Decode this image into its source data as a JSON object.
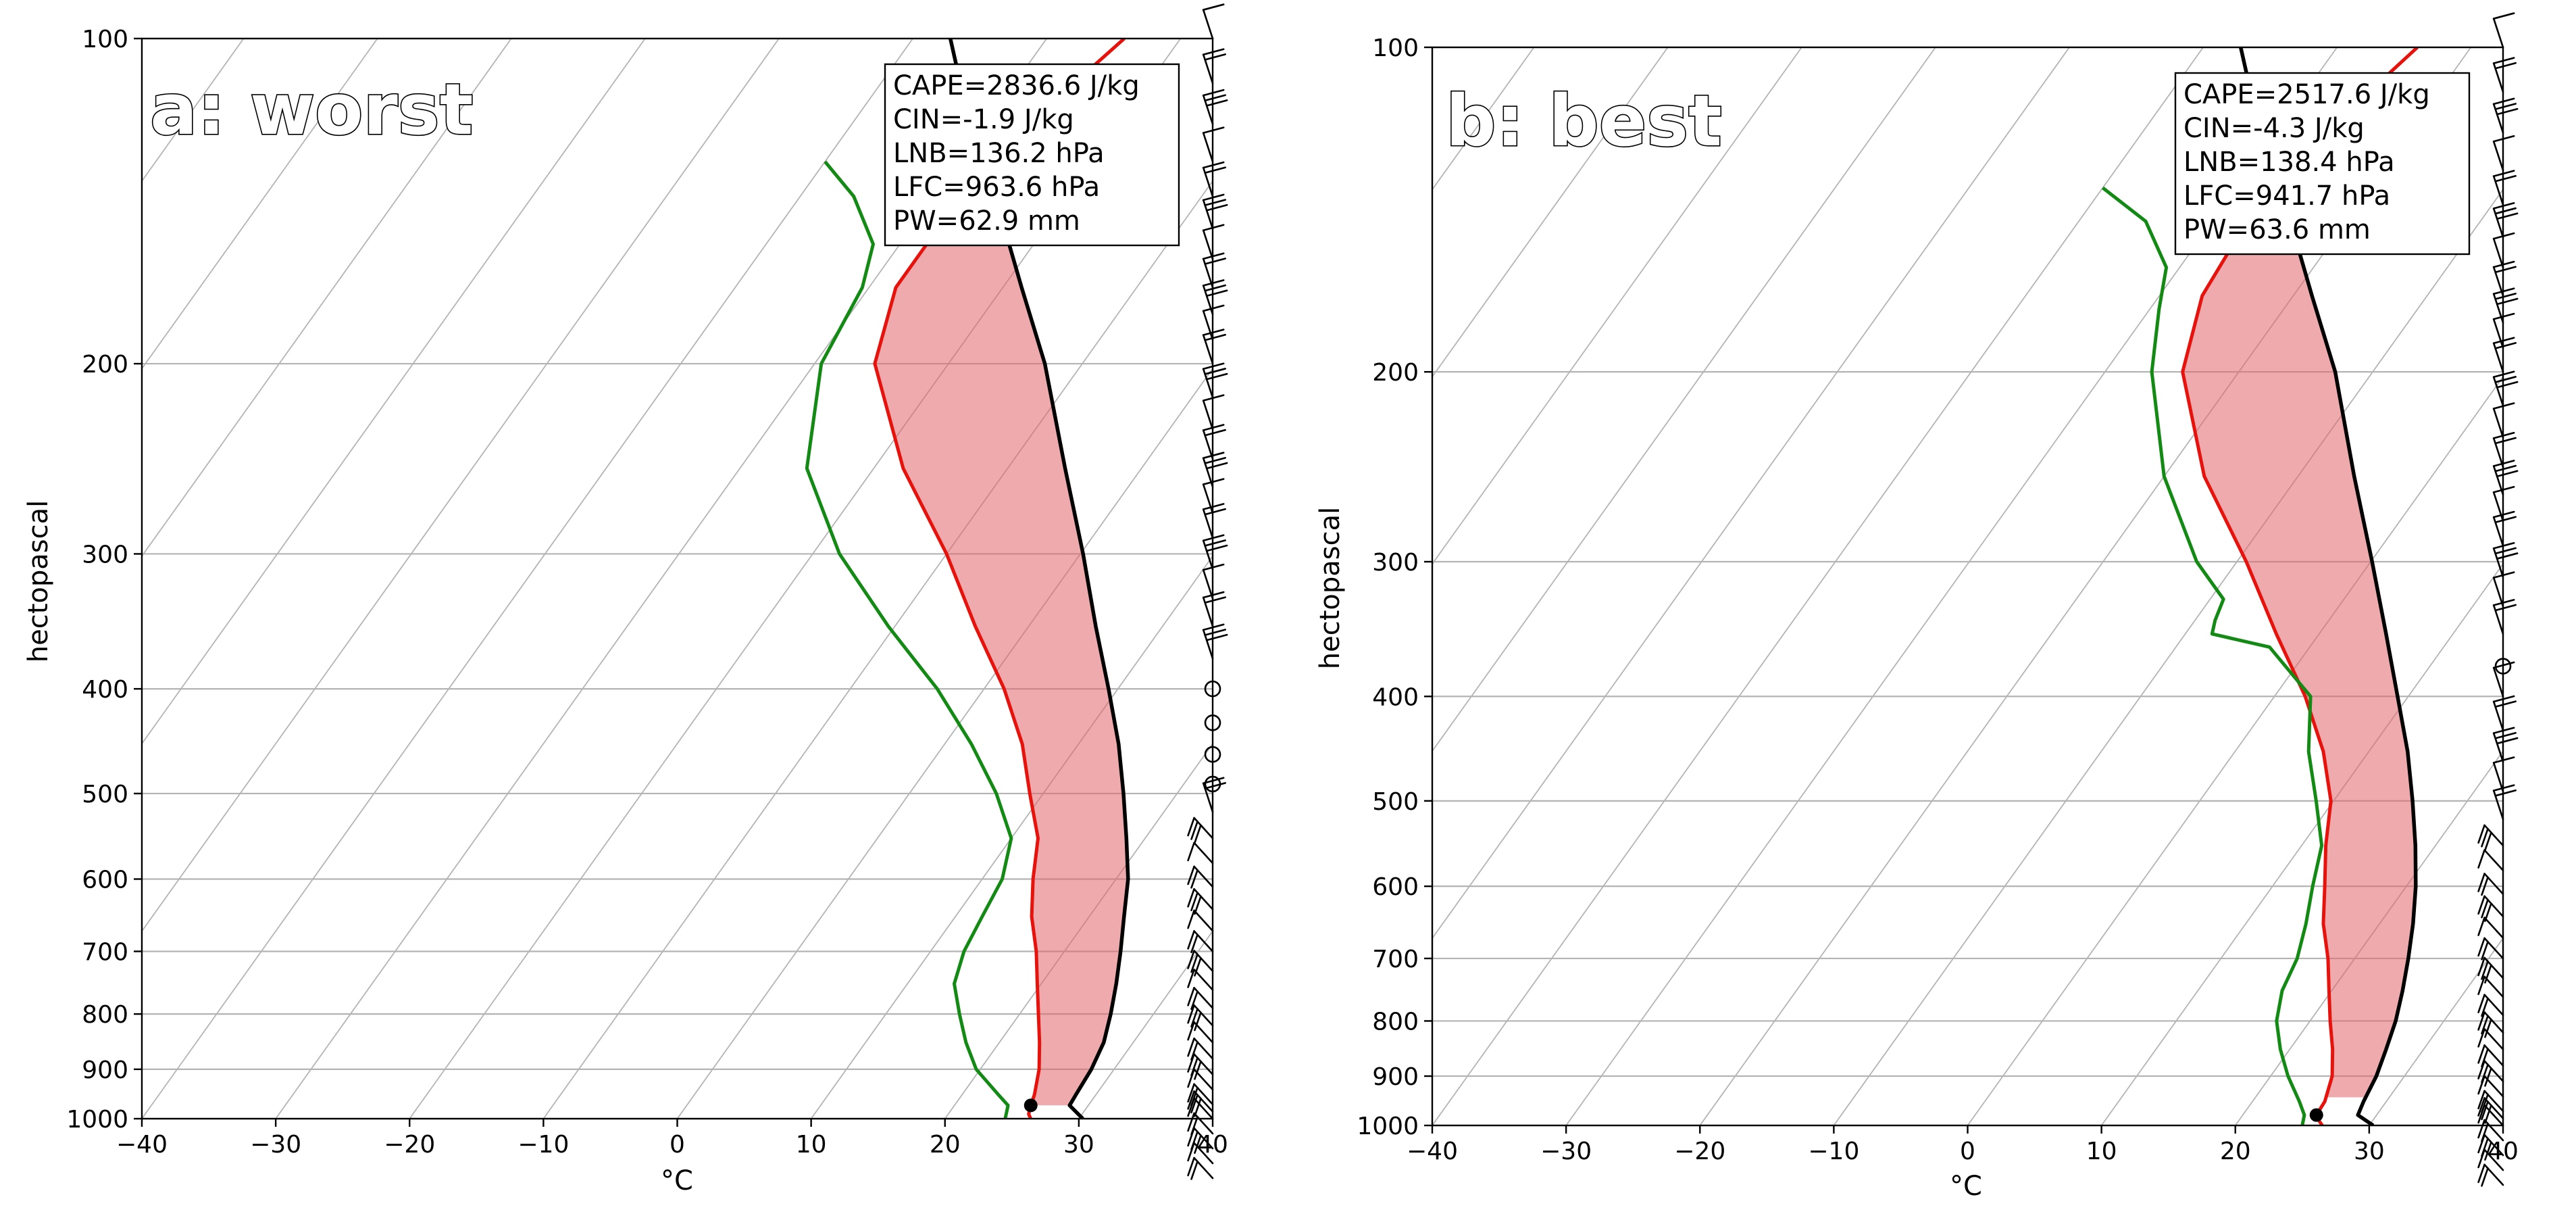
{
  "figure": {
    "panels": [
      {
        "title": "a: worst",
        "xlabel": "°C",
        "ylabel": "hectopascal",
        "stats": [
          "CAPE=2836.6 J/kg",
          "CIN=-1.9 J/kg",
          "LNB=136.2 hPa",
          "LFC=963.6 hPa",
          "PW=62.9 mm"
        ]
      },
      {
        "title": "b: best",
        "xlabel": "°C",
        "ylabel": "hectopascal",
        "stats": [
          "CAPE=2517.6 J/kg",
          "CIN=-4.3 J/kg",
          "LNB=138.4 hPa",
          "LFC=941.7 hPa",
          "PW=63.6 mm"
        ]
      }
    ]
  },
  "chart_data": [
    {
      "type": "skew-t",
      "title": "a: worst",
      "xlabel": "°C",
      "ylabel": "hectopascal",
      "xlim": [
        -40,
        40
      ],
      "ylim": [
        1000,
        100
      ],
      "xticks": [
        -40,
        -30,
        -20,
        -10,
        0,
        10,
        20,
        30,
        40
      ],
      "yticks": [
        100,
        200,
        300,
        400,
        500,
        600,
        700,
        800,
        900,
        1000
      ],
      "series": [
        {
          "name": "temperature",
          "color": "#e8120c",
          "points": [
            [
              100,
              -24.2
            ],
            [
              115,
              -26.2
            ],
            [
              130,
              -27.8
            ],
            [
              150,
              -28
            ],
            [
              170,
              -28
            ],
            [
              200,
              -25.5
            ],
            [
              250,
              -17.8
            ],
            [
              300,
              -10
            ],
            [
              350,
              -4
            ],
            [
              400,
              1.5
            ],
            [
              450,
              5.8
            ],
            [
              500,
              9
            ],
            [
              550,
              12
            ],
            [
              600,
              13.8
            ],
            [
              650,
              15.7
            ],
            [
              700,
              17.9
            ],
            [
              750,
              19.7
            ],
            [
              800,
              21.4
            ],
            [
              850,
              23
            ],
            [
              900,
              24.4
            ],
            [
              950,
              25.4
            ],
            [
              972,
              25.7
            ],
            [
              990,
              26
            ],
            [
              1000,
              26.4
            ]
          ]
        },
        {
          "name": "dewpoint",
          "color": "#138a13",
          "points": [
            [
              130,
              -40
            ],
            [
              140,
              -36
            ],
            [
              155,
              -32
            ],
            [
              170,
              -30.5
            ],
            [
              200,
              -29.5
            ],
            [
              250,
              -25
            ],
            [
              300,
              -18
            ],
            [
              350,
              -10.5
            ],
            [
              400,
              -3.5
            ],
            [
              450,
              2
            ],
            [
              500,
              6.5
            ],
            [
              550,
              10
            ],
            [
              600,
              11.5
            ],
            [
              650,
              12
            ],
            [
              700,
              12.5
            ],
            [
              750,
              13.5
            ],
            [
              800,
              15.5
            ],
            [
              850,
              17.5
            ],
            [
              900,
              19.7
            ],
            [
              950,
              22.7
            ],
            [
              972,
              24
            ],
            [
              1000,
              24.5
            ]
          ]
        },
        {
          "name": "parcel profile",
          "color": "#000000",
          "points": [
            [
              100,
              -37.2
            ],
            [
              115,
              -32.6
            ],
            [
              130,
              -28
            ],
            [
              150,
              -23
            ],
            [
              170,
              -18.6
            ],
            [
              200,
              -12.8
            ],
            [
              250,
              -5.7
            ],
            [
              300,
              0.2
            ],
            [
              350,
              5
            ],
            [
              400,
              9.3
            ],
            [
              450,
              13
            ],
            [
              500,
              16
            ],
            [
              550,
              18.6
            ],
            [
              600,
              20.9
            ],
            [
              650,
              22.6
            ],
            [
              700,
              24.2
            ],
            [
              750,
              25.6
            ],
            [
              800,
              26.8
            ],
            [
              850,
              27.8
            ],
            [
              900,
              28.3
            ],
            [
              950,
              28.5
            ],
            [
              972,
              28.6
            ],
            [
              1000,
              30.3
            ]
          ]
        }
      ],
      "shaded_region": {
        "name": "CAPE",
        "color": "#e0656a",
        "between": [
          "temperature",
          "parcel profile"
        ],
        "p_range": [
          972,
          136.2
        ]
      },
      "surface_parcel_marker": {
        "pressure": 972,
        "temperature": 25.7
      },
      "wind_barbs_pressure_hpa": [
        100,
        110,
        120,
        130,
        140,
        150,
        160,
        170,
        180,
        190,
        200,
        215,
        230,
        245,
        260,
        275,
        290,
        310,
        330,
        350,
        375,
        400,
        430,
        460,
        490,
        520,
        550,
        580,
        610,
        640,
        670,
        700,
        730,
        760,
        790,
        820,
        850,
        880,
        910,
        940,
        970,
        985,
        1000,
        1010,
        1020,
        1030,
        1040
      ]
    },
    {
      "type": "skew-t",
      "title": "b: best",
      "xlabel": "°C",
      "ylabel": "hectopascal",
      "xlim": [
        -40,
        40
      ],
      "ylim": [
        1000,
        100
      ],
      "xticks": [
        -40,
        -30,
        -20,
        -10,
        0,
        10,
        20,
        30,
        40
      ],
      "yticks": [
        100,
        200,
        300,
        400,
        500,
        600,
        700,
        800,
        900,
        1000
      ],
      "series": [
        {
          "name": "temperature",
          "color": "#e8120c",
          "points": [
            [
              100,
              -24
            ],
            [
              115,
              -25.8
            ],
            [
              130,
              -27.3
            ],
            [
              150,
              -27.3
            ],
            [
              170,
              -26.8
            ],
            [
              200,
              -24.2
            ],
            [
              250,
              -17
            ],
            [
              300,
              -9.3
            ],
            [
              350,
              -3.2
            ],
            [
              400,
              2.3
            ],
            [
              450,
              6.6
            ],
            [
              500,
              9.8
            ],
            [
              550,
              11.8
            ],
            [
              600,
              13.9
            ],
            [
              650,
              15.8
            ],
            [
              700,
              18
            ],
            [
              750,
              19.8
            ],
            [
              800,
              21.5
            ],
            [
              850,
              23.2
            ],
            [
              900,
              24.6
            ],
            [
              950,
              25.4
            ],
            [
              978,
              25.5
            ],
            [
              990,
              26
            ],
            [
              1000,
              26.5
            ]
          ]
        },
        {
          "name": "dewpoint",
          "color": "#138a13",
          "points": [
            [
              135,
              -40
            ],
            [
              145,
              -35
            ],
            [
              160,
              -31
            ],
            [
              175,
              -29.3
            ],
            [
              200,
              -26.5
            ],
            [
              250,
              -20
            ],
            [
              300,
              -13
            ],
            [
              325,
              -9
            ],
            [
              340,
              -8.5
            ],
            [
              350,
              -8
            ],
            [
              360,
              -3
            ],
            [
              400,
              2.7
            ],
            [
              450,
              5.5
            ],
            [
              500,
              8.7
            ],
            [
              550,
              11.5
            ],
            [
              600,
              13
            ],
            [
              650,
              14.5
            ],
            [
              700,
              15.7
            ],
            [
              750,
              16.3
            ],
            [
              800,
              17.5
            ],
            [
              850,
              19.3
            ],
            [
              900,
              21.3
            ],
            [
              950,
              23.5
            ],
            [
              978,
              24.6
            ],
            [
              1000,
              25
            ]
          ]
        },
        {
          "name": "parcel profile",
          "color": "#000000",
          "points": [
            [
              100,
              -37.2
            ],
            [
              115,
              -32.6
            ],
            [
              130,
              -28
            ],
            [
              150,
              -23
            ],
            [
              170,
              -18.6
            ],
            [
              200,
              -12.8
            ],
            [
              250,
              -5.8
            ],
            [
              300,
              0.1
            ],
            [
              350,
              5
            ],
            [
              400,
              9.2
            ],
            [
              450,
              12.9
            ],
            [
              500,
              15.9
            ],
            [
              550,
              18.5
            ],
            [
              600,
              20.7
            ],
            [
              650,
              22.5
            ],
            [
              700,
              24
            ],
            [
              750,
              25.3
            ],
            [
              800,
              26.4
            ],
            [
              850,
              27.2
            ],
            [
              900,
              27.9
            ],
            [
              950,
              28.3
            ],
            [
              978,
              28.6
            ],
            [
              1000,
              30.3
            ]
          ]
        }
      ],
      "shaded_region": {
        "name": "CAPE",
        "color": "#e0656a",
        "between": [
          "temperature",
          "parcel profile"
        ],
        "p_range": [
          941.7,
          138.4
        ]
      },
      "surface_parcel_marker": {
        "pressure": 978,
        "temperature": 25.5
      },
      "wind_barbs_pressure_hpa": [
        100,
        110,
        120,
        130,
        140,
        150,
        160,
        170,
        180,
        190,
        200,
        215,
        230,
        245,
        260,
        275,
        290,
        310,
        330,
        350,
        375,
        400,
        430,
        460,
        490,
        520,
        550,
        580,
        610,
        640,
        670,
        700,
        730,
        760,
        790,
        820,
        850,
        880,
        910,
        940,
        970,
        985,
        1000,
        1010,
        1020,
        1030,
        1040
      ]
    }
  ]
}
